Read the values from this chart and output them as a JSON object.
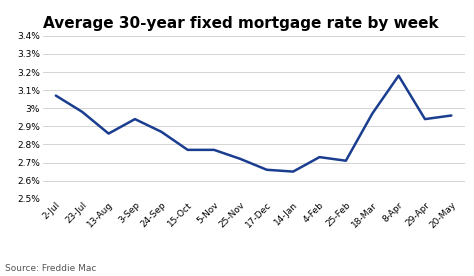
{
  "title": "Average 30-year fixed mortgage rate by week",
  "source": "Source: Freddie Mac",
  "x_labels": [
    "2-Jul",
    "23-Jul",
    "13-Aug",
    "3-Sep",
    "24-Sep",
    "15-Oct",
    "5-Nov",
    "25-Nov",
    "17-Dec",
    "14-Jan",
    "4-Feb",
    "25-Feb",
    "18-Mar",
    "8-Apr",
    "29-Apr",
    "20-May"
  ],
  "y_values": [
    3.07,
    2.98,
    2.86,
    2.94,
    2.87,
    2.77,
    2.77,
    2.72,
    2.66,
    2.65,
    2.73,
    2.71,
    2.97,
    3.18,
    2.94,
    2.96
  ],
  "line_color": "#1a3d8f",
  "line_width": 1.8,
  "ylim": [
    2.5,
    3.4
  ],
  "yticks": [
    2.5,
    2.6,
    2.7,
    2.8,
    2.9,
    3.0,
    3.1,
    3.2,
    3.3,
    3.4
  ],
  "background_color": "#ffffff",
  "grid_color": "#cccccc",
  "title_fontsize": 11,
  "label_fontsize": 6.5,
  "source_fontsize": 6.5
}
